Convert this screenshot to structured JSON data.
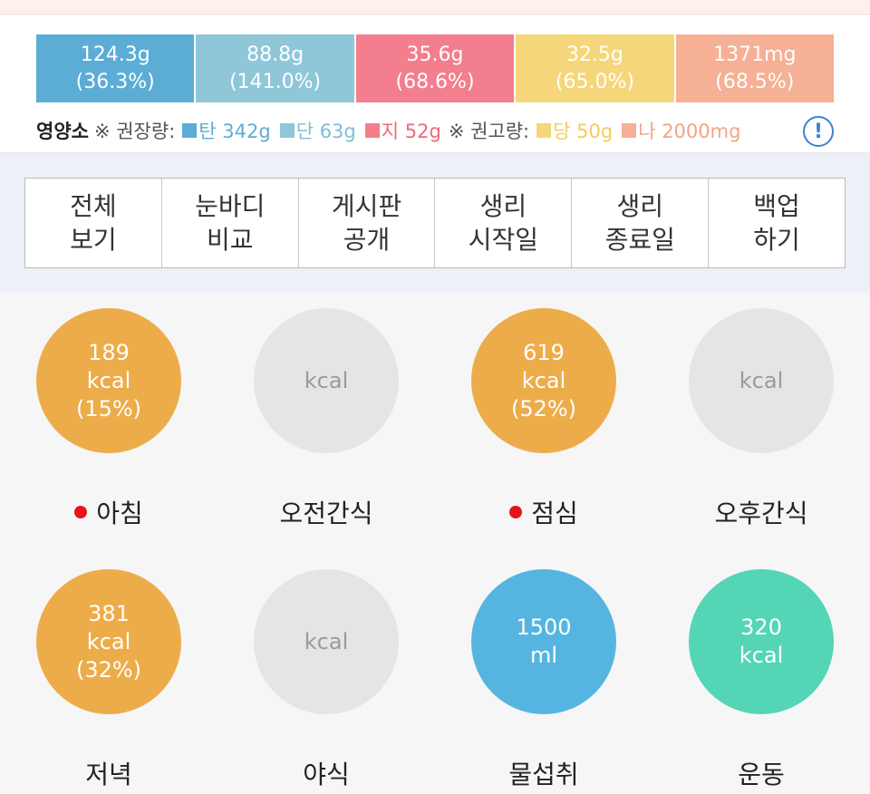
{
  "nutrients": [
    {
      "amount": "124.3g",
      "percent": "(36.3%)",
      "color": "#5badd6"
    },
    {
      "amount": "88.8g",
      "percent": "(141.0%)",
      "color": "#8fc7d9"
    },
    {
      "amount": "35.6g",
      "percent": "(68.6%)",
      "color": "#f37e8d"
    },
    {
      "amount": "32.5g",
      "percent": "(65.0%)",
      "color": "#f6d67a"
    },
    {
      "amount": "1371mg",
      "percent": "(68.5%)",
      "color": "#f5b096"
    }
  ],
  "legend": {
    "label": "영양소",
    "recommended": "※ 권장량:",
    "items_recommended": [
      {
        "text": "탄 342g",
        "color": "#5badd6",
        "text_color": "#5badd6"
      },
      {
        "text": "단 63g",
        "color": "#8fc7d9",
        "text_color": "#7dbfd2"
      },
      {
        "text": "지 52g",
        "color": "#f37e8d",
        "text_color": "#ef6a7a"
      }
    ],
    "advised": "※ 권고량:",
    "items_advised": [
      {
        "text": "당 50g",
        "color": "#f6d67a",
        "text_color": "#f2cc5d"
      },
      {
        "text": "나 2000mg",
        "color": "#f5b096",
        "text_color": "#f2a587"
      }
    ],
    "info_symbol": "!"
  },
  "menu": [
    {
      "label": "전체\n보기",
      "name": "menu-view-all"
    },
    {
      "label": "눈바디\n비교",
      "name": "menu-body-compare"
    },
    {
      "label": "게시판\n공개",
      "name": "menu-board-public"
    },
    {
      "label": "생리\n시작일",
      "name": "menu-period-start"
    },
    {
      "label": "생리\n종료일",
      "name": "menu-period-end"
    },
    {
      "label": "백업\n하기",
      "name": "menu-backup"
    }
  ],
  "meals": [
    {
      "name": "아침",
      "lines": [
        "189",
        "kcal",
        "(15%)"
      ],
      "color": "#edac4a",
      "marked": true,
      "key": "breakfast"
    },
    {
      "name": "오전간식",
      "lines": [
        "kcal"
      ],
      "color": "#e5e5e5",
      "marked": false,
      "key": "morning-snack"
    },
    {
      "name": "점심",
      "lines": [
        "619",
        "kcal",
        "(52%)"
      ],
      "color": "#edac4a",
      "marked": true,
      "key": "lunch"
    },
    {
      "name": "오후간식",
      "lines": [
        "kcal"
      ],
      "color": "#e5e5e5",
      "marked": false,
      "key": "afternoon-snack"
    },
    {
      "name": "저녁",
      "lines": [
        "381",
        "kcal",
        "(32%)"
      ],
      "color": "#edac4a",
      "marked": false,
      "key": "dinner"
    },
    {
      "name": "야식",
      "lines": [
        "kcal"
      ],
      "color": "#e5e5e5",
      "marked": false,
      "key": "late-snack"
    },
    {
      "name": "물섭취",
      "lines": [
        "1500",
        "ml"
      ],
      "color": "#55b5e0",
      "marked": false,
      "key": "water"
    },
    {
      "name": "운동",
      "lines": [
        "320",
        "kcal"
      ],
      "color": "#54d5b5",
      "marked": false,
      "key": "exercise"
    }
  ]
}
